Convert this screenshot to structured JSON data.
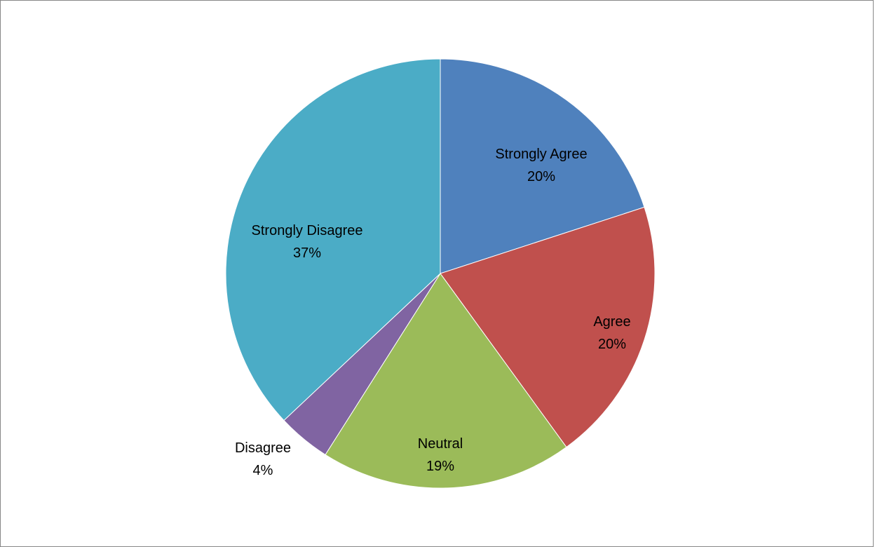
{
  "chart_data": {
    "type": "pie",
    "title": "",
    "slices": [
      {
        "label": "Strongly Agree",
        "value": 20,
        "display": "20%",
        "color": "#4F81BD"
      },
      {
        "label": "Agree",
        "value": 20,
        "display": "20%",
        "color": "#C0504D"
      },
      {
        "label": "Neutral",
        "value": 19,
        "display": "19%",
        "color": "#9BBB59"
      },
      {
        "label": "Disagree",
        "value": 4,
        "display": "4%",
        "color": "#8064A2"
      },
      {
        "label": "Strongly Disagree",
        "value": 37,
        "display": "37%",
        "color": "#4BACC6"
      }
    ],
    "start_angle": "12 o'clock",
    "direction": "clockwise",
    "legend": "none",
    "data_labels": "category name and percentage"
  }
}
